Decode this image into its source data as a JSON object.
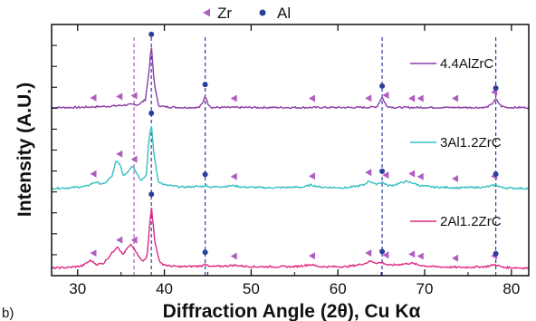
{
  "chart_data": {
    "type": "line",
    "panel_label": "b)",
    "xlabel": "Diffraction Angle  (2θ), Cu Kα",
    "ylabel": "Intensity (A.U.)",
    "xlim": [
      27,
      82
    ],
    "x_ticks": [
      30,
      40,
      50,
      60,
      70,
      80
    ],
    "y_ticks_shown": false,
    "legend": {
      "placement": "top-center",
      "entries": [
        {
          "label": "Zr",
          "marker": "left-triangle",
          "color": "#b05cc0"
        },
        {
          "label": "Al",
          "marker": "circle",
          "color": "#2a3f9b"
        }
      ]
    },
    "colors": {
      "zr_marker": "#b05cc0",
      "al_marker": "#2a3f9b",
      "axis": "#111111"
    },
    "series": [
      {
        "name": "4.4AlZrC",
        "color": "#8a3ea6",
        "offset": 2.0,
        "x": [
          27,
          30,
          32,
          34,
          35,
          36,
          37,
          37.8,
          38.2,
          38.5,
          38.8,
          39.3,
          40,
          42,
          44,
          44.4,
          44.7,
          45.0,
          45.4,
          47,
          50,
          55,
          60,
          63,
          64.5,
          65.1,
          65.6,
          66.5,
          70,
          75,
          77,
          77.6,
          78.2,
          78.8,
          79.5,
          82
        ],
        "values": [
          0.07,
          0.07,
          0.08,
          0.09,
          0.1,
          0.11,
          0.11,
          0.18,
          0.55,
          0.95,
          0.45,
          0.1,
          0.08,
          0.07,
          0.07,
          0.13,
          0.24,
          0.13,
          0.07,
          0.07,
          0.07,
          0.07,
          0.07,
          0.07,
          0.08,
          0.22,
          0.09,
          0.07,
          0.07,
          0.07,
          0.07,
          0.1,
          0.19,
          0.09,
          0.07,
          0.07
        ]
      },
      {
        "name": "3Al1.2ZrC",
        "color": "#38bfc0",
        "offset": 1.0,
        "x": [
          27,
          29,
          31,
          32,
          33,
          34,
          34.4,
          34.8,
          35.3,
          35.8,
          36.3,
          36.8,
          37.3,
          37.9,
          38.2,
          38.5,
          38.8,
          39.3,
          40,
          42,
          44.4,
          44.8,
          45.2,
          47,
          48,
          49,
          52,
          56,
          56.9,
          58,
          61,
          63,
          63.6,
          64.3,
          65.1,
          65.8,
          66.5,
          67.8,
          68.6,
          69.5,
          71,
          74,
          77,
          78.2,
          79,
          82
        ],
        "values": [
          0.04,
          0.05,
          0.07,
          0.13,
          0.1,
          0.22,
          0.42,
          0.4,
          0.22,
          0.28,
          0.37,
          0.26,
          0.16,
          0.22,
          0.7,
          0.95,
          0.52,
          0.14,
          0.09,
          0.06,
          0.07,
          0.09,
          0.06,
          0.07,
          0.08,
          0.06,
          0.05,
          0.06,
          0.09,
          0.06,
          0.05,
          0.09,
          0.15,
          0.1,
          0.13,
          0.08,
          0.09,
          0.14,
          0.12,
          0.08,
          0.06,
          0.05,
          0.06,
          0.09,
          0.05,
          0.04
        ]
      },
      {
        "name": "2Al1.2ZrC",
        "color": "#de2a85",
        "offset": 0.0,
        "x": [
          27,
          29,
          30.5,
          31.5,
          32.2,
          33,
          34,
          34.6,
          35.2,
          35.8,
          36.2,
          36.9,
          37.5,
          38.0,
          38.5,
          38.9,
          39.5,
          40.5,
          42,
          44.3,
          44.7,
          45.1,
          47,
          48,
          50,
          55,
          56.8,
          58,
          61,
          63,
          63.8,
          64.5,
          65.1,
          65.8,
          67,
          68.5,
          69.5,
          71,
          74,
          77,
          78.2,
          79,
          82
        ],
        "values": [
          0.03,
          0.04,
          0.06,
          0.14,
          0.08,
          0.1,
          0.25,
          0.34,
          0.22,
          0.32,
          0.36,
          0.22,
          0.12,
          0.2,
          0.92,
          0.4,
          0.1,
          0.06,
          0.05,
          0.06,
          0.1,
          0.05,
          0.06,
          0.07,
          0.05,
          0.05,
          0.08,
          0.05,
          0.05,
          0.09,
          0.13,
          0.1,
          0.11,
          0.07,
          0.08,
          0.1,
          0.07,
          0.05,
          0.04,
          0.05,
          0.08,
          0.04,
          0.03
        ]
      }
    ],
    "zr_peaks": [
      31.8,
      34.8,
      36.5,
      48.0,
      57.0,
      63.5,
      65.5,
      68.5,
      69.5,
      73.5,
      78.0
    ],
    "al_peaks": [
      38.5,
      44.7,
      65.1,
      78.2
    ],
    "dashed_reference_lines": [
      36.5,
      38.5,
      44.7,
      65.1,
      78.2
    ]
  }
}
